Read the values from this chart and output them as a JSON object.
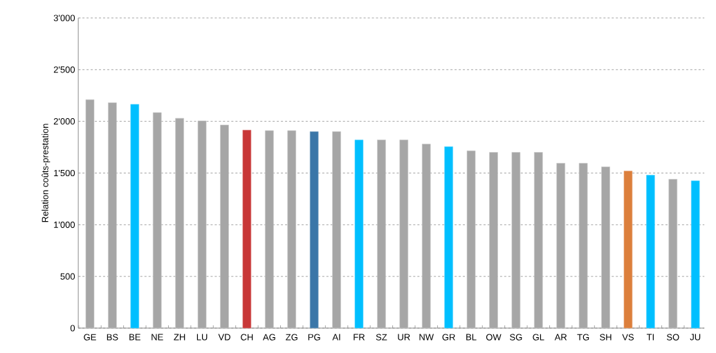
{
  "chart_data": {
    "type": "bar",
    "ylabel": "Relation coûts-prestation",
    "categories": [
      "GE",
      "BS",
      "BE",
      "NE",
      "ZH",
      "LU",
      "VD",
      "CH",
      "AG",
      "ZG",
      "PG",
      "AI",
      "FR",
      "SZ",
      "UR",
      "NW",
      "GR",
      "BL",
      "OW",
      "SG",
      "GL",
      "AR",
      "TG",
      "SH",
      "VS",
      "TI",
      "SO",
      "JU"
    ],
    "values": [
      2210,
      2180,
      2165,
      2085,
      2030,
      2005,
      1965,
      1915,
      1910,
      1910,
      1900,
      1900,
      1820,
      1820,
      1820,
      1780,
      1755,
      1715,
      1700,
      1700,
      1700,
      1595,
      1595,
      1560,
      1520,
      1480,
      1440,
      1425
    ],
    "colors": [
      "#a6a6a6",
      "#a6a6a6",
      "#00bfff",
      "#a6a6a6",
      "#a6a6a6",
      "#a6a6a6",
      "#a6a6a6",
      "#c83737",
      "#a6a6a6",
      "#a6a6a6",
      "#3a76a8",
      "#a6a6a6",
      "#00bfff",
      "#a6a6a6",
      "#a6a6a6",
      "#a6a6a6",
      "#00bfff",
      "#a6a6a6",
      "#a6a6a6",
      "#a6a6a6",
      "#a6a6a6",
      "#a6a6a6",
      "#a6a6a6",
      "#a6a6a6",
      "#dc7f3c",
      "#00bfff",
      "#a6a6a6",
      "#00bfff"
    ],
    "ylim": [
      0,
      3000
    ],
    "yticks": [
      0,
      500,
      {
        "value": 1000,
        "label": "1'000"
      },
      {
        "value": 1500,
        "label": "1'500"
      },
      {
        "value": 2000,
        "label": "2'000"
      },
      {
        "value": 2500,
        "label": "2'500"
      },
      {
        "value": 3000,
        "label": "3'000"
      }
    ],
    "grid": "y"
  }
}
